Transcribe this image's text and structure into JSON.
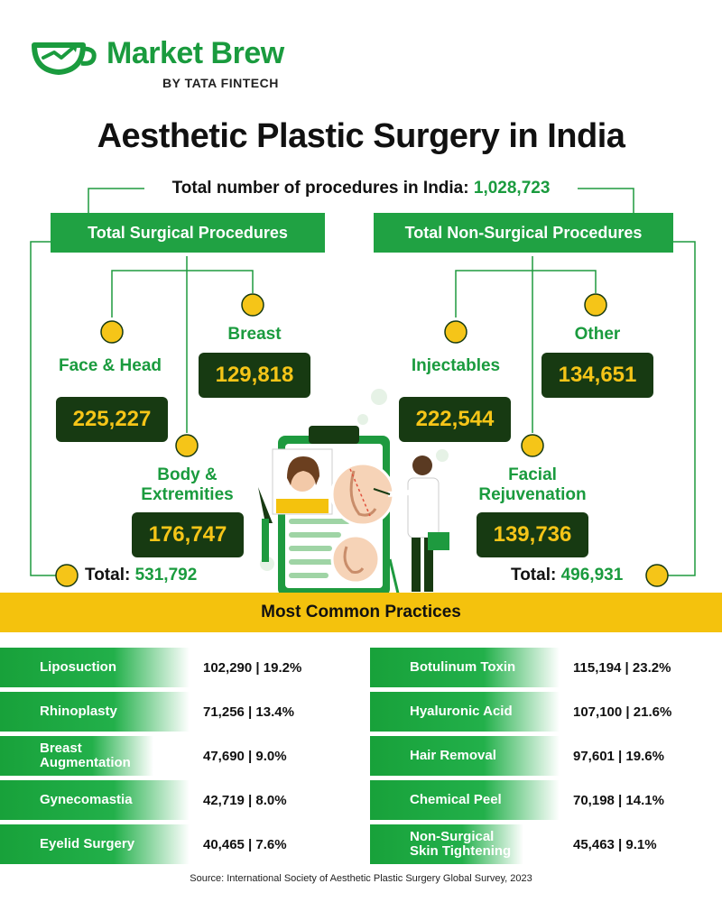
{
  "brand": {
    "name": "Market Brew",
    "sub": "BY TATA FINTECH",
    "color": "#1a9b3e"
  },
  "title": "Aesthetic Plastic Surgery in India",
  "total_label": "Total number of procedures in India:",
  "total_value": "1,028,723",
  "surgical": {
    "header": "Total Surgical Procedures",
    "face_label": "Face & Head",
    "face_value": "225,227",
    "breast_label": "Breast",
    "breast_value": "129,818",
    "body_label": "Body & Extremities",
    "body_value": "176,747",
    "total_prefix": "Total:",
    "total_value": "531,792"
  },
  "non_surgical": {
    "header": "Total Non-Surgical Procedures",
    "inject_label": "Injectables",
    "inject_value": "222,544",
    "other_label": "Other",
    "other_value": "134,651",
    "facial_label": "Facial Rejuvenation",
    "facial_value": "139,736",
    "total_prefix": "Total:",
    "total_value": "496,931"
  },
  "common_title": "Most Common Practices",
  "surgical_rows": [
    {
      "name": "Liposuction",
      "value": "102,290 | 19.2%"
    },
    {
      "name": "Rhinoplasty",
      "value": "71,256 | 13.4%"
    },
    {
      "name": "Breast Augmentation",
      "value": "47,690 | 9.0%"
    },
    {
      "name": "Gynecomastia",
      "value": "42,719 | 8.0%"
    },
    {
      "name": "Eyelid Surgery",
      "value": "40,465 | 7.6%"
    }
  ],
  "non_surgical_rows": [
    {
      "name": "Botulinum Toxin",
      "value": "115,194 | 23.2%"
    },
    {
      "name": "Hyaluronic Acid",
      "value": "107,100 | 21.6%"
    },
    {
      "name": "Hair Removal",
      "value": "97,601 | 19.6%"
    },
    {
      "name": "Chemical Peel",
      "value": "70,198 | 14.1%"
    },
    {
      "name": "Non-Surgical Skin Tightening",
      "value": "45,463 | 9.1%"
    }
  ],
  "source": "Source: International Society of Aesthetic Plastic Surgery Global Survey, 2023",
  "colors": {
    "green": "#20a243",
    "dark_green": "#173a12",
    "yellow": "#f4c20d",
    "gold_text": "#f5c518"
  },
  "chart_data": {
    "type": "table",
    "title": "Aesthetic Plastic Surgery in India",
    "total": 1028723,
    "categories": [
      "Face & Head",
      "Breast",
      "Body & Extremities",
      "Injectables",
      "Other",
      "Facial Rejuvenation"
    ],
    "values": [
      225227,
      129818,
      176747,
      222544,
      134651,
      139736
    ],
    "groups": [
      {
        "name": "Total Surgical Procedures",
        "total": 531792,
        "members": [
          "Face & Head",
          "Breast",
          "Body & Extremities"
        ]
      },
      {
        "name": "Total Non-Surgical Procedures",
        "total": 496931,
        "members": [
          "Injectables",
          "Other",
          "Facial Rejuvenation"
        ]
      }
    ],
    "most_common": {
      "surgical": [
        {
          "name": "Liposuction",
          "count": 102290,
          "percent": 19.2
        },
        {
          "name": "Rhinoplasty",
          "count": 71256,
          "percent": 13.4
        },
        {
          "name": "Breast Augmentation",
          "count": 47690,
          "percent": 9.0
        },
        {
          "name": "Gynecomastia",
          "count": 42719,
          "percent": 8.0
        },
        {
          "name": "Eyelid Surgery",
          "count": 40465,
          "percent": 7.6
        }
      ],
      "non_surgical": [
        {
          "name": "Botulinum Toxin",
          "count": 115194,
          "percent": 23.2
        },
        {
          "name": "Hyaluronic Acid",
          "count": 107100,
          "percent": 21.6
        },
        {
          "name": "Hair Removal",
          "count": 97601,
          "percent": 19.6
        },
        {
          "name": "Chemical Peel",
          "count": 70198,
          "percent": 14.1
        },
        {
          "name": "Non-Surgical Skin Tightening",
          "count": 45463,
          "percent": 9.1
        }
      ]
    }
  }
}
